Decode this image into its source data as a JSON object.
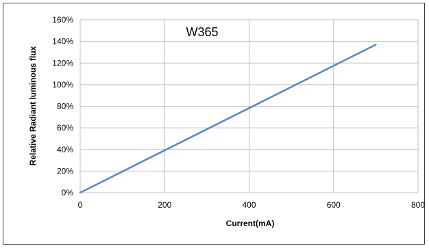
{
  "chart_data": {
    "type": "line",
    "title": "W365",
    "xlabel": "Current(mA)",
    "ylabel": "Relative Radiant luminous flux",
    "xlim": [
      0,
      800
    ],
    "ylim": [
      0,
      160
    ],
    "x_ticks": [
      "0",
      "200",
      "400",
      "600",
      "800"
    ],
    "y_ticks": [
      "0%",
      "20%",
      "40%",
      "60%",
      "80%",
      "100%",
      "120%",
      "140%",
      "160%"
    ],
    "grid": true,
    "series": [
      {
        "x": [
          0,
          700
        ],
        "y": [
          0,
          137
        ],
        "color": "#4f86d0"
      }
    ]
  },
  "colors": {
    "line": "#4f86d0",
    "grid": "#bfbfbf",
    "frame": "#3a3a3a"
  }
}
